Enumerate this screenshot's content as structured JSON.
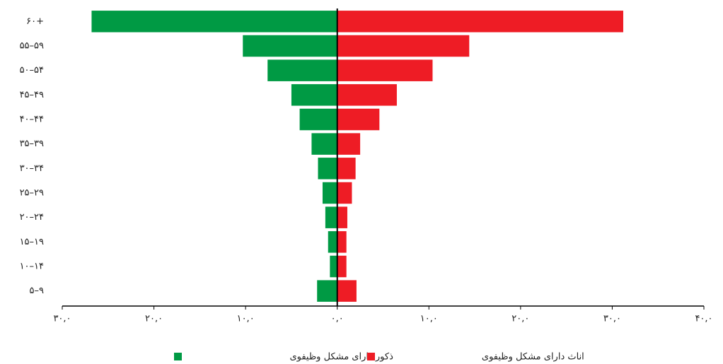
{
  "chart_data": {
    "type": "bar",
    "orientation": "horizontal",
    "categories": [
      "۶۰+",
      "۵۵–۵۹",
      "۵۰–۵۴",
      "۴۵–۴۹",
      "۴۰–۴۴",
      "۳۵–۳۹",
      "۳۰–۳۴",
      "۲۵–۲۹",
      "۲۰–۲۴",
      "۱۵–۱۹",
      "۱۰–۱۴",
      "۵–۹"
    ],
    "series": [
      {
        "name": "ذکور دارای مشکل وظیفوی",
        "color": "#009a44",
        "values": [
          -26.8,
          -10.3,
          -7.6,
          -5.0,
          -4.1,
          -2.8,
          -2.1,
          -1.6,
          -1.3,
          -1.0,
          -0.8,
          -2.2
        ]
      },
      {
        "name": "اناث دارای مشکل وظیفوی",
        "color": "#ee1c25",
        "values": [
          31.2,
          14.4,
          10.4,
          6.5,
          4.6,
          2.5,
          2.0,
          1.6,
          1.1,
          1.0,
          1.0,
          2.1
        ]
      }
    ],
    "xlim": [
      -30,
      40
    ],
    "xticks": [
      {
        "value": -30,
        "label": "۳۰,۰"
      },
      {
        "value": -20,
        "label": "۲۰,۰"
      },
      {
        "value": -10,
        "label": "۱۰,۰"
      },
      {
        "value": 0,
        "label": "۰,۰"
      },
      {
        "value": 10,
        "label": "۱۰,۰"
      },
      {
        "value": 20,
        "label": "۲۰,۰"
      },
      {
        "value": 30,
        "label": "۳۰,۰"
      },
      {
        "value": 40,
        "label": "۴۰,۰"
      }
    ],
    "legend": "bottom"
  }
}
